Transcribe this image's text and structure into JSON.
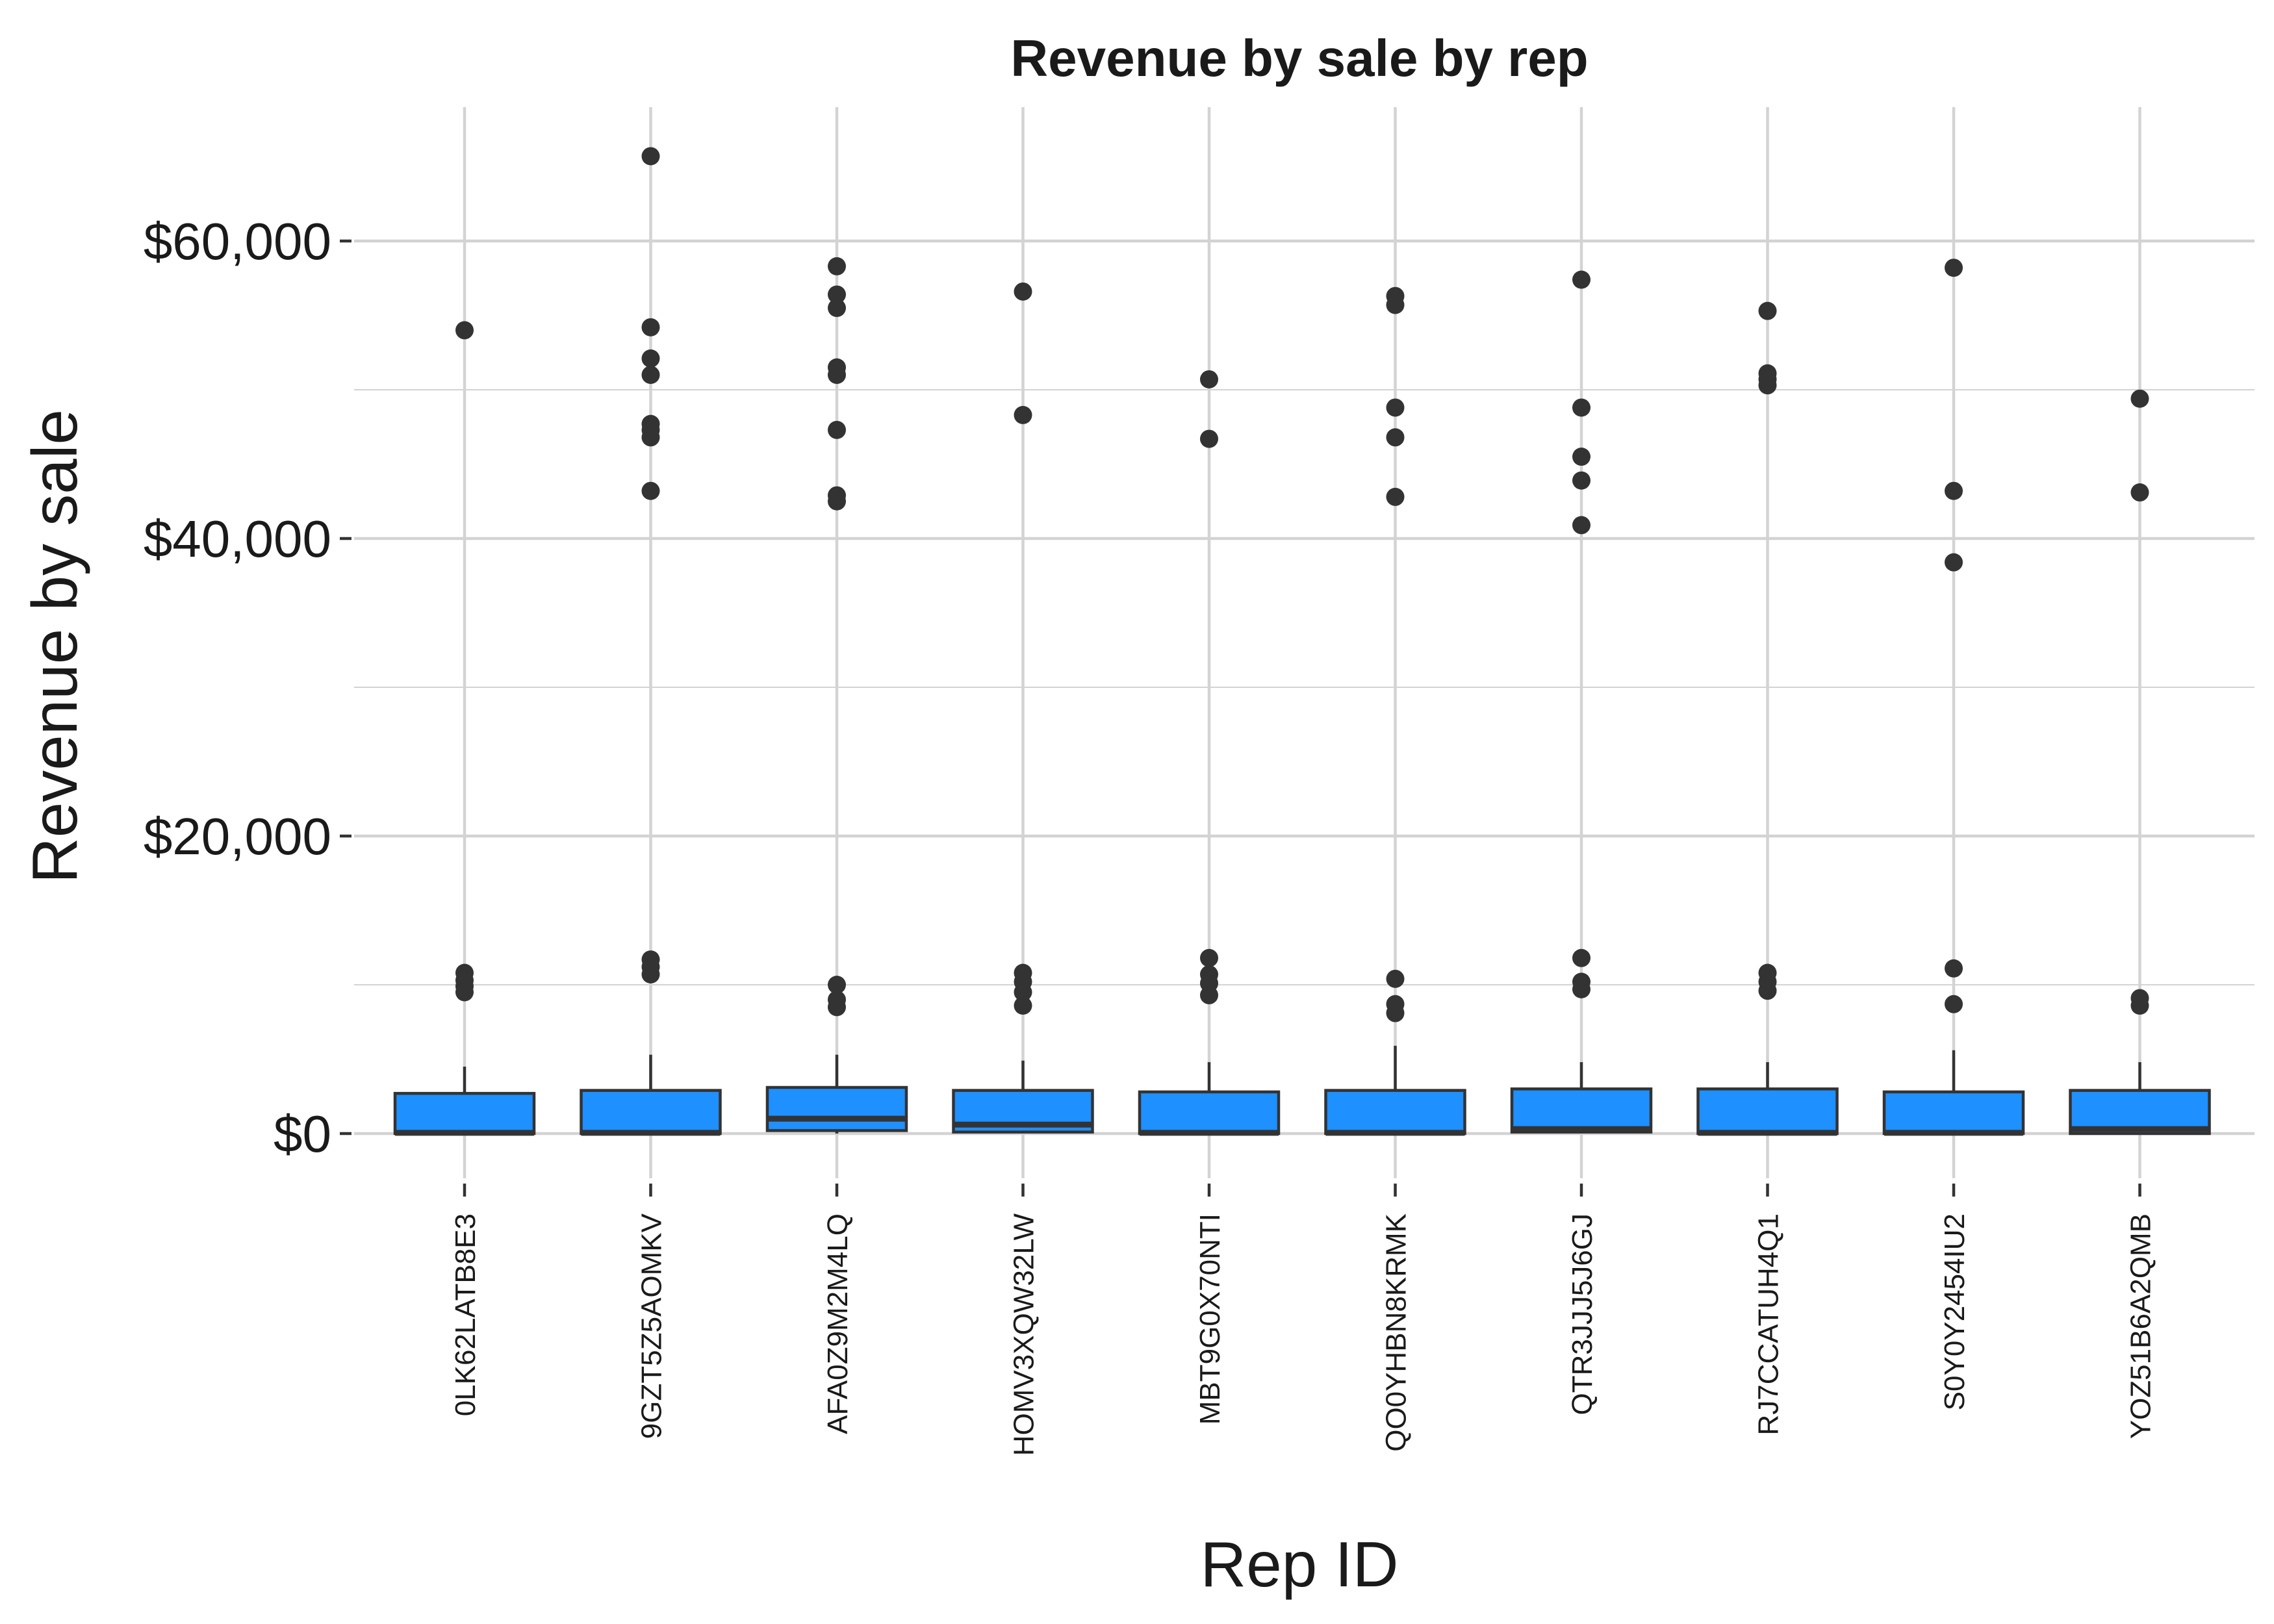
{
  "chart_data": {
    "type": "boxplot",
    "title": "Revenue by sale by rep",
    "xlabel": "Rep ID",
    "ylabel": "Revenue by sale",
    "ylim": [
      -3000,
      69000
    ],
    "y_ticks": [
      0,
      20000,
      40000,
      60000
    ],
    "y_tick_labels": [
      "$0",
      "$20,000",
      "$40,000",
      "$60,000"
    ],
    "y_minor_gridlines": [
      10000,
      30000,
      50000
    ],
    "x_tick_label_rotation": -90,
    "grid": true,
    "box_color": "#1E90FF",
    "line_color": "#333333",
    "grid_color": "#D3D3D3",
    "categories": [
      "0LK62LATB8E3",
      "9GZT5Z5AOMKV",
      "AFA0Z9M2M4LQ",
      "HOMV3XQW32LW",
      "MBT9G0X70NTI",
      "QO0YHBN8KRMK",
      "QTR3JJJ5J6GJ",
      "RJ7CCATUH4Q1",
      "S0Y0Y2454IU2",
      "YOZ51B6A2QMB"
    ],
    "boxes": [
      {
        "q1": 0,
        "median": 50,
        "q3": 2700,
        "whisker_low": 0,
        "whisker_high": 4500,
        "outliers": [
          54000,
          10800,
          10300,
          9900,
          9500
        ]
      },
      {
        "q1": 0,
        "median": 50,
        "q3": 2900,
        "whisker_low": 0,
        "whisker_high": 5300,
        "outliers": [
          65700,
          54200,
          52100,
          51000,
          47700,
          47300,
          46800,
          43200,
          11700,
          11200,
          10700
        ]
      },
      {
        "q1": 200,
        "median": 1000,
        "q3": 3100,
        "whisker_low": 0,
        "whisker_high": 5300,
        "outliers": [
          58300,
          56400,
          55500,
          51500,
          51000,
          47300,
          42900,
          42500,
          10000,
          9000,
          8500
        ]
      },
      {
        "q1": 100,
        "median": 600,
        "q3": 2900,
        "whisker_low": 0,
        "whisker_high": 4900,
        "outliers": [
          56600,
          48300,
          10800,
          10200,
          9500,
          8600
        ]
      },
      {
        "q1": 0,
        "median": 50,
        "q3": 2800,
        "whisker_low": 0,
        "whisker_high": 4800,
        "outliers": [
          50700,
          46700,
          11800,
          10700,
          10100,
          9300
        ]
      },
      {
        "q1": 0,
        "median": 50,
        "q3": 2900,
        "whisker_low": 0,
        "whisker_high": 5900,
        "outliers": [
          56300,
          55700,
          48800,
          46800,
          42800,
          10400,
          8700,
          8100
        ]
      },
      {
        "q1": 100,
        "median": 300,
        "q3": 3000,
        "whisker_low": 0,
        "whisker_high": 4800,
        "outliers": [
          57400,
          48800,
          45500,
          43900,
          40900,
          11800,
          10200,
          9700
        ]
      },
      {
        "q1": 0,
        "median": 50,
        "q3": 3000,
        "whisker_low": 0,
        "whisker_high": 4800,
        "outliers": [
          55300,
          51100,
          50700,
          50300,
          10800,
          10200,
          9600
        ]
      },
      {
        "q1": 0,
        "median": 50,
        "q3": 2800,
        "whisker_low": 0,
        "whisker_high": 5600,
        "outliers": [
          58200,
          43200,
          38400,
          11100,
          8700
        ]
      },
      {
        "q1": 0,
        "median": 300,
        "q3": 2900,
        "whisker_low": 0,
        "whisker_high": 4800,
        "outliers": [
          49400,
          43100,
          9100,
          8600
        ]
      }
    ]
  }
}
